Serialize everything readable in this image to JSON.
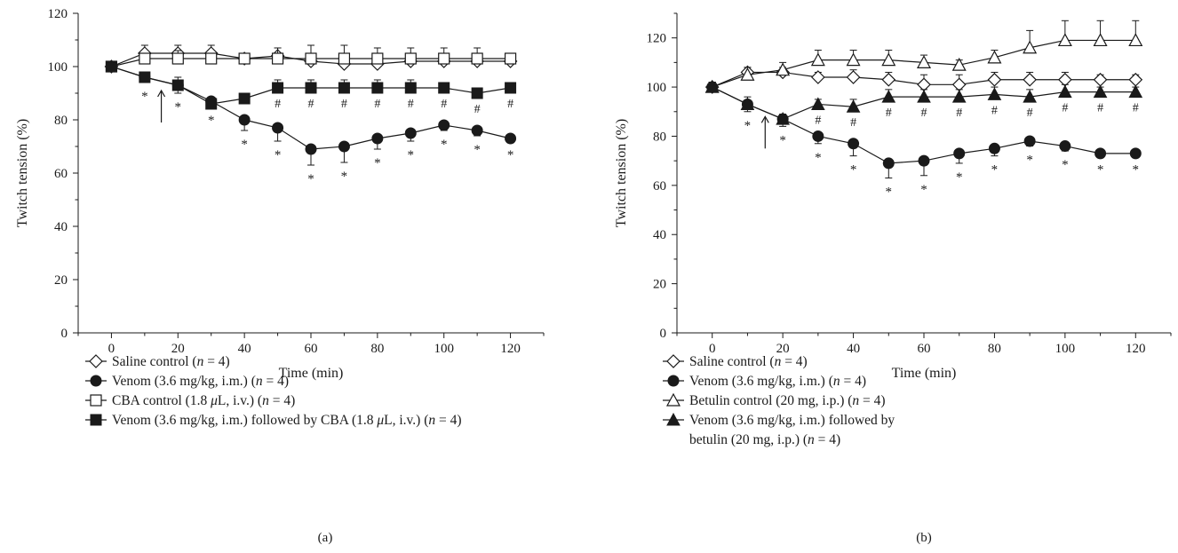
{
  "chart_data": [
    {
      "type": "line",
      "panel_label": "(a)",
      "xlabel": "Time (min)",
      "ylabel": "Twitch tension (%)",
      "xlim": [
        -10,
        130
      ],
      "ylim": [
        0,
        120
      ],
      "xticks": [
        0,
        20,
        40,
        60,
        80,
        100,
        120
      ],
      "yticks": [
        0,
        20,
        40,
        60,
        80,
        100,
        120
      ],
      "x": [
        0,
        10,
        20,
        30,
        40,
        50,
        60,
        70,
        80,
        90,
        100,
        110,
        120
      ],
      "arrow_at": 15,
      "series": [
        {
          "name": "Saline control",
          "marker": "diamond-open",
          "values": [
            100,
            105,
            105,
            105,
            103,
            104,
            102,
            101,
            101,
            102,
            102,
            102,
            102
          ],
          "err": [
            2,
            3,
            3,
            3,
            2,
            3,
            2,
            2,
            2,
            2,
            2,
            2,
            2
          ]
        },
        {
          "name": "Venom (3.6 mg/kg, i.m.)",
          "marker": "circle-filled",
          "values": [
            100,
            96,
            93,
            87,
            80,
            77,
            69,
            70,
            73,
            75,
            78,
            76,
            73
          ],
          "err": [
            2,
            2,
            3,
            2,
            4,
            5,
            6,
            6,
            4,
            3,
            2,
            2,
            1
          ],
          "markers": [
            "",
            "*",
            "*",
            "*",
            "*",
            "*",
            "*",
            "*",
            "*",
            "*",
            "*",
            "*",
            "*"
          ]
        },
        {
          "name": "CBA control (1.8 μL, i.v.)",
          "marker": "square-open",
          "values": [
            100,
            103,
            103,
            103,
            103,
            103,
            103,
            103,
            103,
            103,
            103,
            103,
            103
          ],
          "err": [
            2,
            2,
            3,
            2,
            2,
            4,
            5,
            5,
            4,
            4,
            4,
            4,
            2
          ]
        },
        {
          "name": "Venom (3.6 mg/kg, i.m.) followed by CBA (1.8 μL, i.v.)",
          "marker": "square-filled",
          "values": [
            100,
            96,
            93,
            86,
            88,
            92,
            92,
            92,
            92,
            92,
            92,
            90,
            92
          ],
          "err": [
            2,
            2,
            3,
            2,
            2,
            3,
            3,
            3,
            3,
            3,
            1,
            1,
            1
          ],
          "markers": [
            "",
            "",
            "",
            "",
            "",
            "#",
            "#",
            "#",
            "#",
            "#",
            "#",
            "#",
            "#"
          ]
        }
      ],
      "legend_parts": [
        [
          {
            "t": "Saline control ("
          },
          {
            "t": "n",
            "i": true
          },
          {
            "t": " = 4)"
          }
        ],
        [
          {
            "t": "Venom (3.6 mg/kg, i.m.) ("
          },
          {
            "t": "n",
            "i": true
          },
          {
            "t": " = 4)"
          }
        ],
        [
          {
            "t": "CBA control (1.8 "
          },
          {
            "t": "μ",
            "i": true
          },
          {
            "t": "L, i.v.) ("
          },
          {
            "t": "n",
            "i": true
          },
          {
            "t": " = 4)"
          }
        ],
        [
          {
            "t": "Venom (3.6 mg/kg, i.m.) followed by CBA (1.8 "
          },
          {
            "t": "μ",
            "i": true
          },
          {
            "t": "L, i.v.) ("
          },
          {
            "t": "n",
            "i": true
          },
          {
            "t": " = 4)"
          }
        ]
      ]
    },
    {
      "type": "line",
      "panel_label": "(b)",
      "xlabel": "Time (min)",
      "ylabel": "Twitch tension (%)",
      "xlim": [
        -10,
        130
      ],
      "ylim": [
        0,
        130
      ],
      "xticks": [
        0,
        20,
        40,
        60,
        80,
        100,
        120
      ],
      "yticks": [
        0,
        20,
        40,
        60,
        80,
        100,
        120
      ],
      "x": [
        0,
        10,
        20,
        30,
        40,
        50,
        60,
        70,
        80,
        90,
        100,
        110,
        120
      ],
      "arrow_at": 15,
      "series": [
        {
          "name": "Saline control",
          "marker": "diamond-open",
          "values": [
            100,
            106,
            106,
            104,
            104,
            103,
            101,
            101,
            103,
            103,
            103,
            103,
            103
          ],
          "err": [
            2,
            2,
            2,
            2,
            3,
            3,
            4,
            4,
            3,
            3,
            3,
            2,
            2
          ]
        },
        {
          "name": "Venom (3.6 mg/kg, i.m.)",
          "marker": "circle-filled",
          "values": [
            100,
            93,
            87,
            80,
            77,
            69,
            70,
            73,
            75,
            78,
            76,
            73,
            73
          ],
          "err": [
            2,
            3,
            3,
            3,
            5,
            6,
            6,
            4,
            3,
            2,
            2,
            1,
            1
          ],
          "markers": [
            "",
            "*",
            "*",
            "*",
            "*",
            "*",
            "*",
            "*",
            "*",
            "*",
            "*",
            "*",
            "*"
          ]
        },
        {
          "name": "Betulin control (20 mg, i.p.)",
          "marker": "triangle-open",
          "values": [
            100,
            105,
            107,
            111,
            111,
            111,
            110,
            109,
            112,
            116,
            119,
            119,
            119
          ],
          "err": [
            2,
            3,
            3,
            4,
            4,
            4,
            3,
            2,
            3,
            7,
            8,
            8,
            8
          ]
        },
        {
          "name": "Venom (3.6 mg/kg, i.m.) followed by betulin (20 mg, i.p.)",
          "marker": "triangle-filled",
          "values": [
            100,
            93,
            87,
            93,
            92,
            96,
            96,
            96,
            97,
            96,
            98,
            98,
            98
          ],
          "err": [
            2,
            3,
            2,
            2,
            3,
            3,
            3,
            3,
            3,
            3,
            3,
            2,
            2
          ],
          "markers": [
            "",
            "",
            "",
            "#",
            "#",
            "#",
            "#",
            "#",
            "#",
            "#",
            "#",
            "#",
            "#"
          ]
        }
      ],
      "legend_parts": [
        [
          {
            "t": "Saline control ("
          },
          {
            "t": "n",
            "i": true
          },
          {
            "t": " = 4)"
          }
        ],
        [
          {
            "t": "Venom (3.6 mg/kg, i.m.) ("
          },
          {
            "t": "n",
            "i": true
          },
          {
            "t": " = 4)"
          }
        ],
        [
          {
            "t": "Betulin control (20 mg, i.p.) ("
          },
          {
            "t": "n",
            "i": true
          },
          {
            "t": " = 4)"
          }
        ],
        [
          {
            "t": "Venom (3.6 mg/kg, i.m.) followed by"
          }
        ],
        [
          {
            "t": "betulin (20 mg, i.p.) ("
          },
          {
            "t": "n",
            "i": true
          },
          {
            "t": " = 4)"
          }
        ]
      ]
    }
  ]
}
